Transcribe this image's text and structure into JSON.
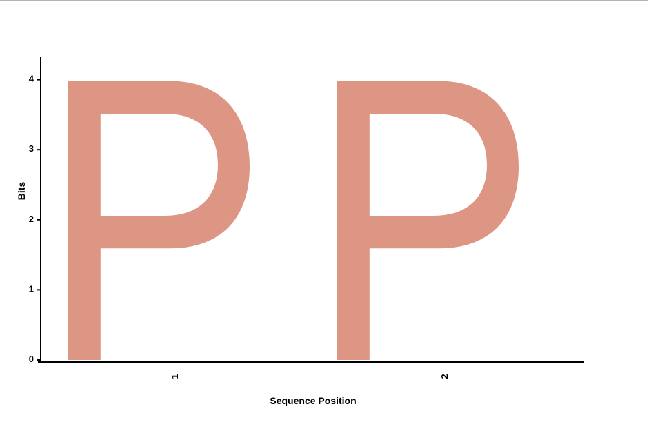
{
  "chart_data": {
    "type": "sequence-logo",
    "xlabel": "Sequence Position",
    "ylabel": "Bits",
    "ylim": [
      0,
      4.32
    ],
    "y_ticks": [
      0,
      1,
      2,
      3,
      4
    ],
    "positions": [
      "1",
      "2"
    ],
    "columns": [
      {
        "position": "1",
        "letters": [
          {
            "letter": "P",
            "bits": 3.98,
            "color": "#dd9683"
          }
        ]
      },
      {
        "position": "2",
        "letters": [
          {
            "letter": "P",
            "bits": 3.98,
            "color": "#dd9683"
          }
        ]
      }
    ],
    "colors": {
      "letter": "#dd9683",
      "axis": "#000000"
    }
  }
}
